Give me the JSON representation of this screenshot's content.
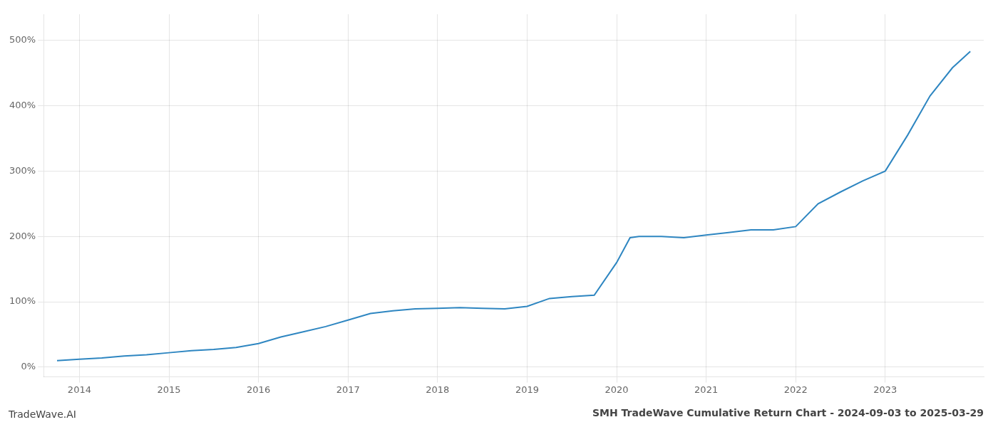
{
  "chart_data": {
    "type": "line",
    "title": "SMH TradeWave Cumulative Return Chart - 2024-09-03 to 2025-03-29",
    "annotations": [
      {
        "text": "TradeWave.AI"
      }
    ],
    "x": [
      2013.75,
      2014.0,
      2014.25,
      2014.5,
      2014.75,
      2015.0,
      2015.25,
      2015.5,
      2015.75,
      2016.0,
      2016.25,
      2016.5,
      2016.75,
      2017.0,
      2017.25,
      2017.5,
      2017.75,
      2018.0,
      2018.25,
      2018.5,
      2018.75,
      2019.0,
      2019.25,
      2019.5,
      2019.75,
      2020.0,
      2020.15,
      2020.25,
      2020.5,
      2020.75,
      2021.0,
      2021.25,
      2021.5,
      2021.75,
      2022.0,
      2022.25,
      2022.5,
      2022.75,
      2023.0,
      2023.25,
      2023.5,
      2023.75,
      2023.95
    ],
    "values": [
      10,
      12,
      14,
      17,
      19,
      22,
      25,
      27,
      30,
      36,
      46,
      54,
      62,
      72,
      82,
      86,
      89,
      90,
      91,
      90,
      89,
      93,
      105,
      108,
      110,
      160,
      198,
      200,
      200,
      198,
      202,
      206,
      210,
      210,
      215,
      250,
      268,
      285,
      300,
      355,
      415,
      458,
      483
    ],
    "color": "#2e86c1",
    "xlim": [
      2013.6,
      2024.1
    ],
    "xticks": [
      2014,
      2015,
      2016,
      2017,
      2018,
      2019,
      2020,
      2021,
      2022,
      2023
    ],
    "ylim": [
      -15,
      540
    ],
    "yticks": [
      {
        "value": 0,
        "label": "0%"
      },
      {
        "value": 100,
        "label": "100%"
      },
      {
        "value": 200,
        "label": "200%"
      },
      {
        "value": 300,
        "label": "300%"
      },
      {
        "value": 400,
        "label": "400%"
      },
      {
        "value": 500,
        "label": "500%"
      }
    ],
    "grid": true
  }
}
